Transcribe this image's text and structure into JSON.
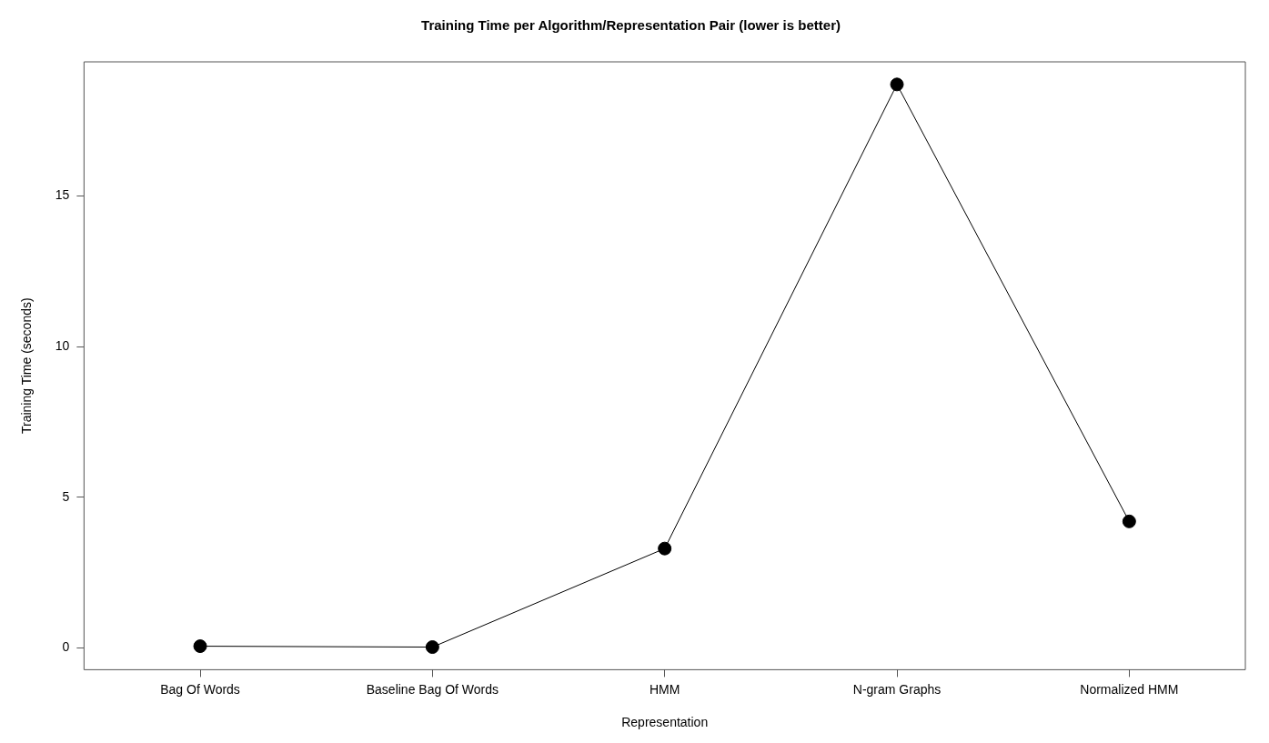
{
  "chart_data": {
    "type": "line",
    "title": "Training Time per Algorithm/Representation Pair (lower is better)",
    "xlabel": "Representation",
    "ylabel": "Training Time (seconds)",
    "categories": [
      "Bag Of Words",
      "Baseline Bag Of Words",
      "HMM",
      "N-gram Graphs",
      "Normalized HMM"
    ],
    "values": [
      0.06,
      0.03,
      3.3,
      18.7,
      4.2
    ],
    "color": "#000000",
    "marker": "circle",
    "line_style": "solid",
    "ylim": [
      -0.72,
      19.45
    ],
    "yticks": [
      0,
      5,
      10,
      15
    ],
    "grid": false,
    "legend": false
  }
}
